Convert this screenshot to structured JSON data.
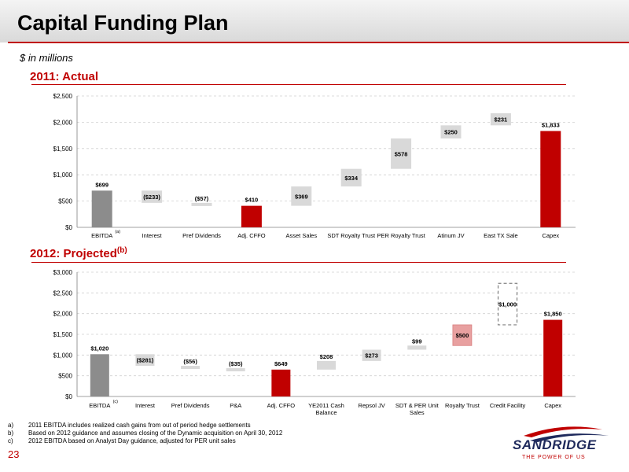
{
  "page": {
    "title": "Capital Funding Plan",
    "units": "$ in millions",
    "page_number": "23"
  },
  "footnotes": [
    {
      "key": "a)",
      "text": "2011 EBITDA includes realized cash gains from out of period hedge settlements"
    },
    {
      "key": "b)",
      "text": "Based on 2012 guidance and assumes closing of the Dynamic acquisition on April 30, 2012"
    },
    {
      "key": "c)",
      "text": "2012 EBITDA based on Analyst Day guidance, adjusted for PER unit sales"
    }
  ],
  "logo": {
    "name": "SANDRIDGE",
    "tagline": "THE POWER OF US",
    "colors": {
      "primary": "#1f2a5c",
      "accent": "#c00000"
    }
  },
  "colors": {
    "gray": "#8c8c8c",
    "red": "#c00000",
    "light": "#d9d9d9",
    "accent": "#c00000"
  },
  "chart_data": [
    {
      "type": "bar",
      "subtype": "waterfall",
      "title": "2011: Actual",
      "title_sup": "",
      "ylim": [
        0,
        2500
      ],
      "yticks": [
        0,
        500,
        1000,
        1500,
        2000,
        2500
      ],
      "ytick_labels": [
        "$0",
        "$500",
        "$1,000",
        "$1,500",
        "$2,000",
        "$2,500"
      ],
      "grid": true,
      "categories": [
        "EBITDA",
        "Interest",
        "Pref Dividends",
        "Adj. CFFO",
        "Asset Sales",
        "SDT Royalty Trust",
        "PER Royalty Trust",
        "Atinum JV",
        "East TX Sale",
        "Capex"
      ],
      "category_lines": [
        [
          "EBITDA"
        ],
        [
          "Interest"
        ],
        [
          "Pref Dividends"
        ],
        [
          "Adj. CFFO"
        ],
        [
          "Asset Sales"
        ],
        [
          "SDT Royalty Trust"
        ],
        [
          "PER Royalty Trust"
        ],
        [
          "Atinum JV"
        ],
        [
          "East TX Sale"
        ],
        [
          "Capex"
        ]
      ],
      "category_sup": [
        "(a)",
        "",
        "",
        "",
        "",
        "",
        "",
        "",
        "",
        ""
      ],
      "bars": [
        {
          "label": "$699",
          "low": 0,
          "high": 699,
          "style": "gray"
        },
        {
          "label": "($233)",
          "low": 466,
          "high": 699,
          "style": "light"
        },
        {
          "label": "($57)",
          "low": 410,
          "high": 466,
          "style": "light"
        },
        {
          "label": "$410",
          "low": 0,
          "high": 410,
          "style": "red"
        },
        {
          "label": "$369",
          "low": 410,
          "high": 779,
          "style": "light"
        },
        {
          "label": "$334",
          "low": 779,
          "high": 1113,
          "style": "light"
        },
        {
          "label": "$578",
          "low": 1113,
          "high": 1691,
          "style": "light"
        },
        {
          "label": "$250",
          "low": 1691,
          "high": 1941,
          "style": "light"
        },
        {
          "label": "$231",
          "low": 1941,
          "high": 2172,
          "style": "light"
        },
        {
          "label": "$1,833",
          "low": 0,
          "high": 1833,
          "style": "red"
        }
      ]
    },
    {
      "type": "bar",
      "subtype": "waterfall",
      "title": "2012: Projected",
      "title_sup": "(b)",
      "ylim": [
        0,
        3000
      ],
      "yticks": [
        0,
        500,
        1000,
        1500,
        2000,
        2500,
        3000
      ],
      "ytick_labels": [
        "$0",
        "$500",
        "$1,000",
        "$1,500",
        "$2,000",
        "$2,500",
        "$3,000"
      ],
      "grid": true,
      "categories": [
        "EBITDA",
        "Interest",
        "Pref Dividends",
        "P&A",
        "Adj. CFFO",
        "YE2011 Cash Balance",
        "Repsol JV",
        "SDT & PER Unit Sales",
        "Royalty Trust",
        "Credit Facility",
        "Capex"
      ],
      "category_lines": [
        [
          "EBITDA"
        ],
        [
          "Interest"
        ],
        [
          "Pref Dividends"
        ],
        [
          "P&A"
        ],
        [
          "Adj. CFFO"
        ],
        [
          "YE2011 Cash",
          "Balance"
        ],
        [
          "Repsol JV"
        ],
        [
          "SDT & PER Unit",
          "Sales"
        ],
        [
          "Royalty Trust"
        ],
        [
          "Credit Facility"
        ],
        [
          "Capex"
        ]
      ],
      "category_sup": [
        "(c)",
        "",
        "",
        "",
        "",
        "",
        "",
        "",
        "",
        "",
        ""
      ],
      "bars": [
        {
          "label": "$1,020",
          "low": 0,
          "high": 1020,
          "style": "gray"
        },
        {
          "label": "($281)",
          "low": 739,
          "high": 1020,
          "style": "light"
        },
        {
          "label": "($56)",
          "low": 683,
          "high": 739,
          "style": "light"
        },
        {
          "label": "($35)",
          "low": 649,
          "high": 683,
          "style": "light"
        },
        {
          "label": "$649",
          "low": 0,
          "high": 649,
          "style": "red"
        },
        {
          "label": "$208",
          "low": 649,
          "high": 857,
          "style": "light"
        },
        {
          "label": "$273",
          "low": 857,
          "high": 1130,
          "style": "light"
        },
        {
          "label": "$99",
          "low": 1130,
          "high": 1229,
          "style": "light"
        },
        {
          "label": "$500",
          "low": 1229,
          "high": 1729,
          "style": "accent"
        },
        {
          "label": "$1,000",
          "low": 1729,
          "high": 2729,
          "style": "dashed"
        },
        {
          "label": "$1,850",
          "low": 0,
          "high": 1850,
          "style": "red"
        }
      ]
    }
  ]
}
